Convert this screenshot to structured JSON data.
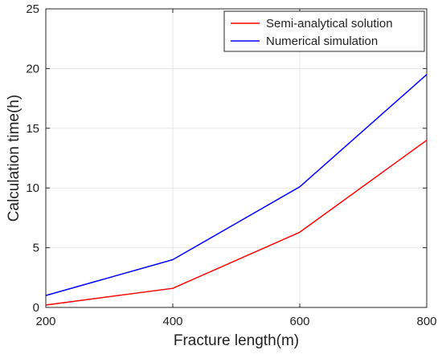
{
  "chart_data": {
    "type": "line",
    "title": "",
    "xlabel": "Fracture length(m)",
    "ylabel": "Calculation time(h)",
    "x": [
      200,
      400,
      600,
      800
    ],
    "xlim": [
      200,
      800
    ],
    "ylim": [
      0,
      25
    ],
    "xticks": [
      200,
      400,
      600,
      800
    ],
    "yticks": [
      0,
      5,
      10,
      15,
      20,
      25
    ],
    "grid": true,
    "legend_position": "top-right",
    "series": [
      {
        "name": "Semi-analytical solution",
        "color": "#ff0000",
        "values": [
          0.2,
          1.6,
          6.3,
          14.0
        ]
      },
      {
        "name": "Numerical simulation",
        "color": "#0000ff",
        "values": [
          1.0,
          4.0,
          10.1,
          19.5
        ]
      }
    ]
  }
}
